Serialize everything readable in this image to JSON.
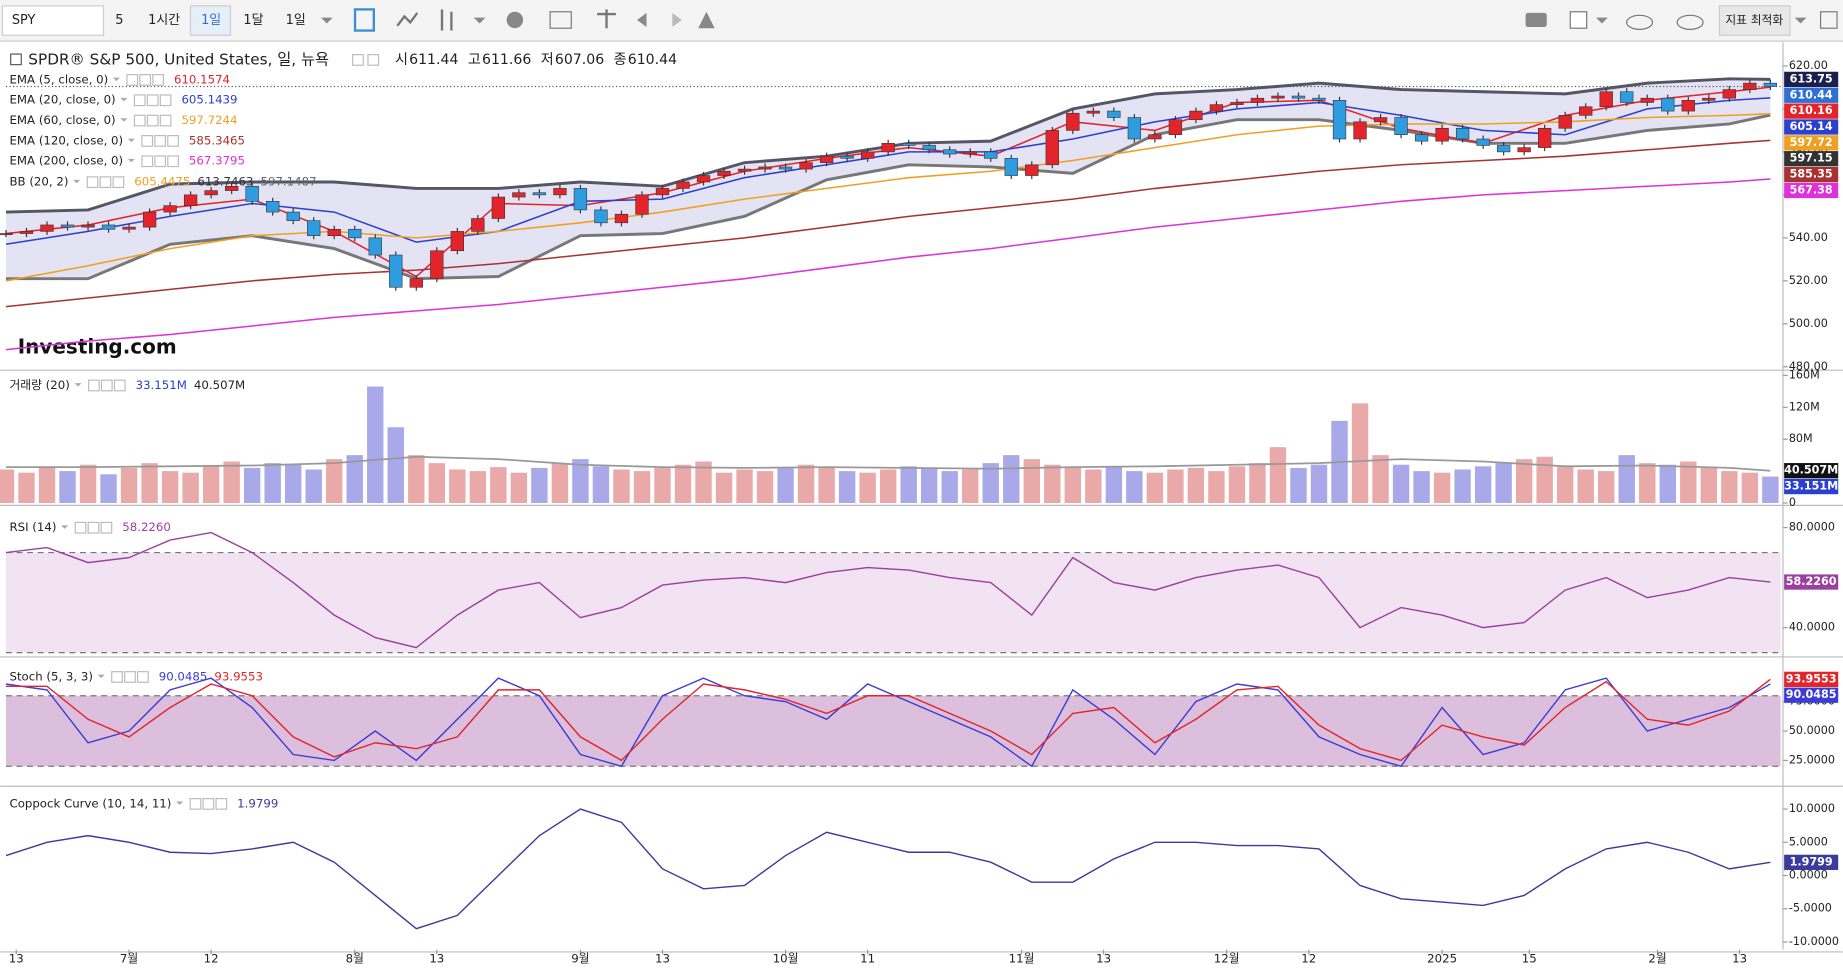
{
  "toolbar": {
    "items": [
      "SPY",
      "5",
      "1시간",
      "1일",
      "1달",
      "1일"
    ],
    "optimize": "지표 최적화"
  },
  "watermark": "Investing.com",
  "chart_data": [
    {
      "type": "candlestick",
      "title": "SPDR® S&P 500, United States, 일, 뉴욕",
      "ohlc": [
        {
          "label": "시",
          "value": 611.44
        },
        {
          "label": "고",
          "value": 611.66
        },
        {
          "label": "저",
          "value": 607.06
        },
        {
          "label": "종",
          "value": 610.44
        }
      ],
      "up_color": "#e3242b",
      "down_color": "#2f9be0",
      "close_tag": "610.44",
      "close_tag_color": "#2f6fd6",
      "ylim": [
        479.5,
        631
      ],
      "yticks": [
        {
          "value": 620,
          "label": "620.00"
        },
        {
          "value": 600,
          "label": "600.00"
        },
        {
          "value": 580,
          "label": "580.00"
        },
        {
          "value": 560,
          "label": "560.00"
        },
        {
          "value": 540,
          "label": "540.00"
        },
        {
          "value": 520,
          "label": "520.00"
        },
        {
          "value": 500,
          "label": "500.00"
        },
        {
          "value": 480,
          "label": "480.00"
        }
      ],
      "x": [
        0,
        2,
        4,
        6,
        8,
        10,
        12,
        14,
        16,
        18,
        20,
        22,
        24,
        26,
        28,
        30,
        32,
        34,
        36,
        38,
        40,
        42,
        44,
        46,
        48,
        50,
        52,
        54,
        56,
        58,
        60,
        62,
        64,
        66,
        68,
        70,
        72,
        74,
        76,
        78,
        80,
        82,
        84,
        86,
        88,
        90,
        92,
        94,
        96,
        98,
        100,
        102,
        104,
        106,
        108,
        110,
        112,
        114,
        116,
        118,
        120,
        122,
        124,
        126,
        128,
        130,
        132,
        134,
        136,
        138,
        140,
        142,
        144,
        146,
        148,
        150,
        152,
        154,
        156,
        158,
        160,
        162,
        164,
        166,
        168,
        170,
        172
      ],
      "close": [
        542,
        543,
        546,
        545,
        546,
        544,
        545,
        552,
        555,
        560,
        562,
        564,
        557,
        552,
        548,
        541,
        544,
        540,
        532,
        517,
        521,
        534,
        543,
        549,
        559,
        561,
        560,
        563,
        553,
        547,
        551,
        560,
        563,
        566,
        569,
        571,
        572,
        573,
        572,
        575,
        578,
        577,
        580,
        584,
        583,
        581,
        579,
        580,
        577,
        569,
        574,
        590,
        598,
        599,
        596,
        586,
        588,
        595,
        599,
        602,
        603,
        605,
        606,
        605,
        604,
        586,
        594,
        596,
        588,
        585,
        591,
        586,
        583,
        580,
        582,
        591,
        597,
        601,
        608,
        603,
        605,
        599,
        604,
        605,
        609,
        612,
        610.44
      ],
      "overlay_x": [
        0,
        8,
        16,
        24,
        32,
        40,
        48,
        56,
        64,
        72,
        80,
        88,
        96,
        104,
        112,
        120,
        128,
        136,
        144,
        152,
        160,
        168,
        172
      ],
      "overlays": [
        {
          "name": "EMA (5, close, 0)",
          "legend_label": "610.1574",
          "tag": "610.16",
          "color": "#e3242b",
          "values": [
            542,
            546,
            554,
            558,
            543,
            522,
            556,
            555,
            561,
            571,
            577,
            582,
            578,
            594,
            590,
            603,
            604,
            591,
            584,
            597,
            604,
            608,
            610.1574
          ]
        },
        {
          "name": "EMA (20, close, 0)",
          "legend_label": "605.1439",
          "tag": "605.14",
          "color": "#2b3fd0",
          "values": [
            537,
            543,
            550,
            556,
            552,
            538,
            543,
            557,
            558,
            568,
            574,
            580,
            580,
            586,
            594,
            600,
            603,
            597,
            590,
            588,
            600,
            604,
            605.1439
          ]
        },
        {
          "name": "EMA (60, close, 0)",
          "legend_label": "597.7244",
          "tag": "597.72",
          "color": "#f0a020",
          "values": [
            520,
            527,
            535,
            541,
            543,
            540,
            543,
            547,
            552,
            558,
            563,
            568,
            571,
            576,
            582,
            588,
            592,
            593,
            593,
            594,
            596,
            597,
            597.7244
          ]
        },
        {
          "name": "EMA (120, close, 0)",
          "legend_label": "585.3465",
          "tag": "585.35",
          "color": "#a83232",
          "values": [
            508,
            512,
            516,
            520,
            523,
            525,
            528,
            532,
            536,
            540,
            545,
            550,
            554,
            558,
            563,
            567,
            571,
            574,
            576,
            578,
            581,
            584,
            585.3465
          ]
        },
        {
          "name": "EMA (200, close, 0)",
          "legend_label": "567.3795",
          "tag": "567.38",
          "color": "#e030d8",
          "values": [
            488,
            492,
            495,
            499,
            503,
            506,
            509,
            513,
            517,
            521,
            526,
            531,
            535,
            540,
            545,
            549,
            553,
            557,
            560,
            562,
            564,
            566,
            567.3795
          ]
        }
      ],
      "bands": {
        "name": "BB (20, 2)",
        "legend_labels": [
          "605.4475",
          "613.7463",
          "597.1487"
        ],
        "legend_colors": [
          "#f0a020",
          "#333333",
          "#666666"
        ],
        "fill": "#d9d9f0",
        "upper": {
          "color": "#555566",
          "tag": "613.75",
          "tag_color": "#1a1f4d",
          "values": [
            552,
            553,
            565,
            566,
            566,
            563,
            563,
            566,
            564,
            575,
            578,
            584,
            585,
            600,
            607,
            609,
            612,
            609,
            608,
            607,
            612,
            614,
            613.7463
          ]
        },
        "lower": {
          "color": "#777777",
          "tag": "597.15",
          "tag_color": "#333333",
          "values": [
            521,
            521,
            537,
            541,
            535,
            521,
            522,
            541,
            542,
            550,
            567,
            574,
            573,
            570,
            588,
            595,
            595,
            590,
            584,
            584,
            590,
            593,
            597.1487
          ]
        }
      }
    },
    {
      "type": "bar",
      "name": "거래량 (20)",
      "legend_labels": [
        "33.151M",
        "40.507M"
      ],
      "legend_colors": [
        "#2b3fd0",
        "#222222"
      ],
      "up_color": "#eaa9a9",
      "down_color": "#a9a9ea",
      "ylim": [
        0,
        165
      ],
      "yticks": [
        {
          "value": 160,
          "label": "160M"
        },
        {
          "value": 120,
          "label": "120M"
        },
        {
          "value": 80,
          "label": "80M"
        },
        0
      ],
      "values": [
        42,
        38,
        45,
        40,
        48,
        36,
        44,
        50,
        40,
        38,
        46,
        52,
        44,
        50,
        48,
        42,
        55,
        60,
        146,
        95,
        60,
        50,
        42,
        40,
        45,
        38,
        44,
        50,
        55,
        46,
        42,
        40,
        44,
        48,
        52,
        38,
        42,
        40,
        45,
        48,
        44,
        40,
        38,
        42,
        46,
        44,
        40,
        42,
        50,
        60,
        55,
        48,
        44,
        42,
        45,
        40,
        38,
        42,
        44,
        40,
        46,
        50,
        70,
        44,
        48,
        103,
        125,
        60,
        48,
        40,
        38,
        42,
        46,
        50,
        55,
        58,
        45,
        42,
        40,
        60,
        50,
        48,
        52,
        44,
        40,
        38,
        33.151
      ],
      "tag": "33.151M",
      "tag_color": "#2b3fd0",
      "ma": {
        "color": "#999999",
        "tag": "40.507M",
        "tag_color": "#111111",
        "values": [
          45,
          45,
          46,
          47,
          50,
          58,
          55,
          48,
          45,
          44,
          45,
          44,
          43,
          45,
          46,
          48,
          50,
          55,
          52,
          46,
          47,
          44,
          40.507
        ]
      }
    },
    {
      "type": "line",
      "ylim": [
        29.2,
        85.6
      ],
      "yticks": [
        {
          "value": 80,
          "label": "80.0000"
        },
        {
          "value": 40,
          "label": "40.0000"
        }
      ],
      "levels": [
        70,
        30
      ],
      "level_fill": "#f1e3f1",
      "x": [
        0,
        4,
        8,
        12,
        16,
        20,
        24,
        28,
        32,
        36,
        40,
        44,
        48,
        52,
        56,
        60,
        64,
        68,
        72,
        76,
        80,
        84,
        88,
        92,
        96,
        100,
        104,
        108,
        112,
        116,
        120,
        124,
        128,
        132,
        136,
        140,
        144,
        148,
        152,
        156,
        160,
        164,
        168,
        172
      ],
      "series": [
        {
          "name": "RSI (14)",
          "legend_label": "58.2260",
          "tag": "58.2260",
          "color": "#9b3fa0",
          "values": [
            70,
            72,
            66,
            68,
            75,
            78,
            70,
            58,
            45,
            36,
            32,
            45,
            55,
            58,
            44,
            48,
            57,
            59,
            60,
            58,
            62,
            64,
            63,
            60,
            58,
            45,
            68,
            58,
            55,
            60,
            63,
            65,
            60,
            40,
            48,
            45,
            40,
            42,
            55,
            60,
            52,
            55,
            60,
            58.226
          ]
        }
      ]
    },
    {
      "type": "line",
      "name": "Stoch (5, 3, 3)",
      "ylim": [
        5,
        108
      ],
      "yticks": [
        {
          "value": 75,
          "label": "75.0000"
        },
        {
          "value": 50,
          "label": "50.0000"
        },
        {
          "value": 25,
          "label": "25.0000"
        }
      ],
      "levels": [
        80,
        20
      ],
      "level_fill": "#dcbfdc",
      "x": [
        0,
        4,
        8,
        12,
        16,
        20,
        24,
        28,
        32,
        36,
        40,
        44,
        48,
        52,
        56,
        60,
        64,
        68,
        72,
        76,
        80,
        84,
        88,
        92,
        96,
        100,
        104,
        108,
        112,
        116,
        120,
        124,
        128,
        132,
        136,
        140,
        144,
        148,
        152,
        156,
        160,
        164,
        168,
        172
      ],
      "series": [
        {
          "legend_label": "90.0485",
          "tag": "90.0485",
          "color": "#3b3bd8",
          "values": [
            90,
            85,
            40,
            50,
            85,
            95,
            70,
            30,
            25,
            50,
            25,
            60,
            95,
            80,
            30,
            20,
            80,
            95,
            80,
            75,
            60,
            90,
            75,
            60,
            45,
            20,
            85,
            60,
            30,
            75,
            90,
            85,
            45,
            30,
            20,
            70,
            30,
            40,
            85,
            95,
            50,
            60,
            70,
            90.0485
          ]
        },
        {
          "legend_label": "93.9553",
          "tag": "93.9553",
          "color": "#e3242b",
          "values": [
            88,
            88,
            60,
            45,
            70,
            90,
            80,
            45,
            28,
            40,
            35,
            45,
            85,
            85,
            45,
            25,
            60,
            90,
            85,
            77,
            65,
            80,
            80,
            65,
            50,
            30,
            65,
            70,
            40,
            60,
            85,
            88,
            55,
            35,
            25,
            55,
            45,
            38,
            70,
            92,
            60,
            55,
            67,
            93.9553
          ]
        }
      ]
    },
    {
      "type": "line",
      "ylim": [
        -11.15,
        12.9
      ],
      "yticks": [
        {
          "value": 10,
          "label": "10.0000"
        },
        {
          "value": 5,
          "label": "5.0000"
        },
        {
          "value": 0,
          "label": "0.0000"
        },
        {
          "value": -5,
          "label": "-5.0000"
        },
        {
          "value": -10,
          "label": "-10.0000"
        }
      ],
      "xlim": [
        0,
        173
      ],
      "xticks": [
        {
          "value": 1,
          "label": "13"
        },
        {
          "value": 12,
          "label": "7월"
        },
        {
          "value": 20,
          "label": "12"
        },
        {
          "value": 34,
          "label": "8월"
        },
        {
          "value": 42,
          "label": "13"
        },
        {
          "value": 56,
          "label": "9월"
        },
        {
          "value": 64,
          "label": "13"
        },
        {
          "value": 76,
          "label": "10월"
        },
        {
          "value": 84,
          "label": "11"
        },
        {
          "value": 99,
          "label": "11월"
        },
        {
          "value": 107,
          "label": "13"
        },
        {
          "value": 119,
          "label": "12월"
        },
        {
          "value": 127,
          "label": "12"
        },
        {
          "value": 140,
          "label": "2025"
        },
        {
          "value": 148.5,
          "label": "15"
        },
        {
          "value": 161,
          "label": "2월"
        },
        {
          "value": 169,
          "label": "13"
        }
      ],
      "x": [
        0,
        4,
        8,
        12,
        16,
        20,
        24,
        28,
        32,
        36,
        40,
        44,
        48,
        52,
        56,
        60,
        64,
        68,
        72,
        76,
        80,
        84,
        88,
        92,
        96,
        100,
        104,
        108,
        112,
        116,
        120,
        124,
        128,
        132,
        136,
        140,
        144,
        148,
        152,
        156,
        160,
        164,
        168,
        172
      ],
      "series": [
        {
          "name": "Coppock Curve (10, 14, 11)",
          "legend_label": "1.9799",
          "tag": "1.9799",
          "color": "#3b3b9b",
          "values": [
            3,
            5,
            6,
            5,
            3.5,
            3.3,
            4,
            5,
            2,
            -3,
            -8,
            -6,
            0,
            6,
            10,
            8,
            1,
            -2,
            -1.5,
            3,
            6.5,
            5,
            3.5,
            3.5,
            2,
            -1,
            -1,
            2.5,
            5,
            5,
            4.5,
            4.5,
            4,
            -1.5,
            -3.5,
            -4,
            -4.5,
            -3,
            1,
            4,
            5,
            3.5,
            1,
            1.9799
          ]
        }
      ]
    }
  ]
}
